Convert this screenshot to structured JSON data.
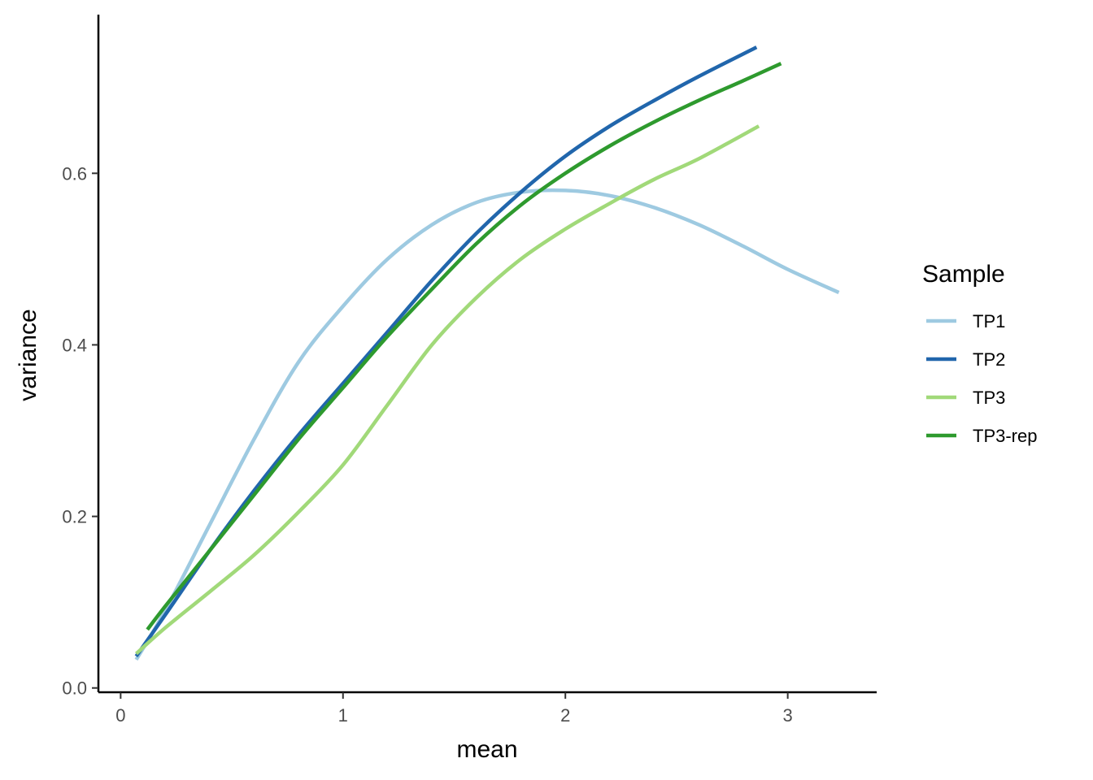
{
  "chart_data": {
    "type": "line",
    "xlabel": "mean",
    "ylabel": "variance",
    "xlim": [
      -0.1,
      3.4
    ],
    "ylim": [
      -0.005,
      0.785
    ],
    "x_ticks": [
      0,
      1,
      2,
      3
    ],
    "y_ticks": [
      0.0,
      0.2,
      0.4,
      0.6
    ],
    "x_tick_labels": [
      "0",
      "1",
      "2",
      "3"
    ],
    "y_tick_labels": [
      "0.0",
      "0.2",
      "0.4",
      "0.6"
    ],
    "grid": false,
    "legend": {
      "title": "Sample",
      "position": "right"
    },
    "series": [
      {
        "name": "TP1",
        "color": "#9ecae1",
        "points": [
          [
            0.07,
            0.033
          ],
          [
            0.2,
            0.09
          ],
          [
            0.4,
            0.19
          ],
          [
            0.6,
            0.29
          ],
          [
            0.8,
            0.38
          ],
          [
            1.0,
            0.445
          ],
          [
            1.2,
            0.5
          ],
          [
            1.4,
            0.54
          ],
          [
            1.6,
            0.566
          ],
          [
            1.8,
            0.578
          ],
          [
            2.0,
            0.58
          ],
          [
            2.2,
            0.574
          ],
          [
            2.4,
            0.56
          ],
          [
            2.6,
            0.54
          ],
          [
            2.8,
            0.515
          ],
          [
            3.0,
            0.488
          ],
          [
            3.23,
            0.461
          ]
        ]
      },
      {
        "name": "TP2",
        "color": "#2166ac",
        "points": [
          [
            0.07,
            0.037
          ],
          [
            0.2,
            0.085
          ],
          [
            0.4,
            0.16
          ],
          [
            0.6,
            0.23
          ],
          [
            0.8,
            0.295
          ],
          [
            1.0,
            0.355
          ],
          [
            1.2,
            0.415
          ],
          [
            1.4,
            0.475
          ],
          [
            1.6,
            0.53
          ],
          [
            1.8,
            0.578
          ],
          [
            2.0,
            0.62
          ],
          [
            2.2,
            0.655
          ],
          [
            2.4,
            0.685
          ],
          [
            2.6,
            0.713
          ],
          [
            2.86,
            0.747
          ]
        ]
      },
      {
        "name": "TP3",
        "color": "#a1d979",
        "points": [
          [
            0.07,
            0.04
          ],
          [
            0.2,
            0.07
          ],
          [
            0.4,
            0.112
          ],
          [
            0.6,
            0.155
          ],
          [
            0.8,
            0.205
          ],
          [
            1.0,
            0.26
          ],
          [
            1.2,
            0.33
          ],
          [
            1.4,
            0.4
          ],
          [
            1.6,
            0.455
          ],
          [
            1.8,
            0.5
          ],
          [
            2.0,
            0.535
          ],
          [
            2.2,
            0.565
          ],
          [
            2.4,
            0.593
          ],
          [
            2.6,
            0.617
          ],
          [
            2.87,
            0.655
          ]
        ]
      },
      {
        "name": "TP3-rep",
        "color": "#2e9a2e",
        "points": [
          [
            0.12,
            0.068
          ],
          [
            0.2,
            0.095
          ],
          [
            0.4,
            0.16
          ],
          [
            0.6,
            0.225
          ],
          [
            0.8,
            0.29
          ],
          [
            1.0,
            0.35
          ],
          [
            1.2,
            0.41
          ],
          [
            1.4,
            0.465
          ],
          [
            1.6,
            0.518
          ],
          [
            1.8,
            0.563
          ],
          [
            2.0,
            0.6
          ],
          [
            2.2,
            0.632
          ],
          [
            2.4,
            0.66
          ],
          [
            2.6,
            0.685
          ],
          [
            2.8,
            0.708
          ],
          [
            2.97,
            0.728
          ]
        ]
      }
    ]
  }
}
